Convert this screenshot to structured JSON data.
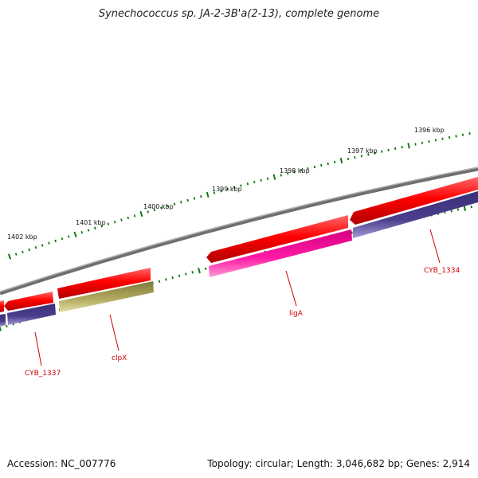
{
  "title": "Synechococcus sp. JA-2-3B'a(2-13), complete genome",
  "footer": {
    "accession": "Accession: NC_007776",
    "summary": "Topology: circular; Length: 3,046,682 bp; Genes: 2,914"
  },
  "kbp_labels": [
    {
      "id": "1396",
      "text": "1396 kbp"
    },
    {
      "id": "1397",
      "text": "1397 kbp"
    },
    {
      "id": "1398",
      "text": "1398 kbp"
    },
    {
      "id": "1399",
      "text": "1399 kbp"
    },
    {
      "id": "1400",
      "text": "1400 kbp"
    },
    {
      "id": "1401",
      "text": "1401 kbp"
    },
    {
      "id": "1402",
      "text": "1402 kbp"
    }
  ],
  "gene_labels": [
    {
      "id": "cyb1334",
      "text": "CYB_1334"
    },
    {
      "id": "liga",
      "text": "ligA"
    },
    {
      "id": "clpx",
      "text": "clpX"
    },
    {
      "id": "cyb1337",
      "text": "CYB_1337"
    }
  ],
  "colors": {
    "backbone": "#888888",
    "cds": "#ff0000",
    "gene_purple": "#4a3f8c",
    "gene_pink": "#ff1aa6",
    "gene_olive": "#b5ad62",
    "ticks": "#0f7a0f",
    "gene_label": "#cc0000"
  }
}
